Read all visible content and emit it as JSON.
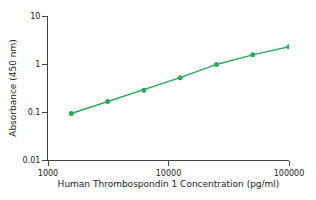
{
  "chart_data": {
    "type": "line",
    "x": [
      1563,
      3125,
      6250,
      12500,
      25000,
      50000,
      100000
    ],
    "values": [
      0.093,
      0.165,
      0.285,
      0.52,
      0.98,
      1.55,
      2.3
    ],
    "color": "#2aaa55",
    "marker": "circle",
    "line_style": "solid",
    "log": true,
    "xlabel": "Human Thrombospondin 1 Concentration (pg/ml)",
    "ylabel": "Absorbance (450 nm)",
    "xlim": [
      1000,
      100000
    ],
    "ylim": [
      0.01,
      10
    ],
    "xticks": [
      1000,
      10000,
      100000
    ],
    "yticks": [
      0.01,
      0.1,
      1,
      10
    ],
    "grid": false
  }
}
